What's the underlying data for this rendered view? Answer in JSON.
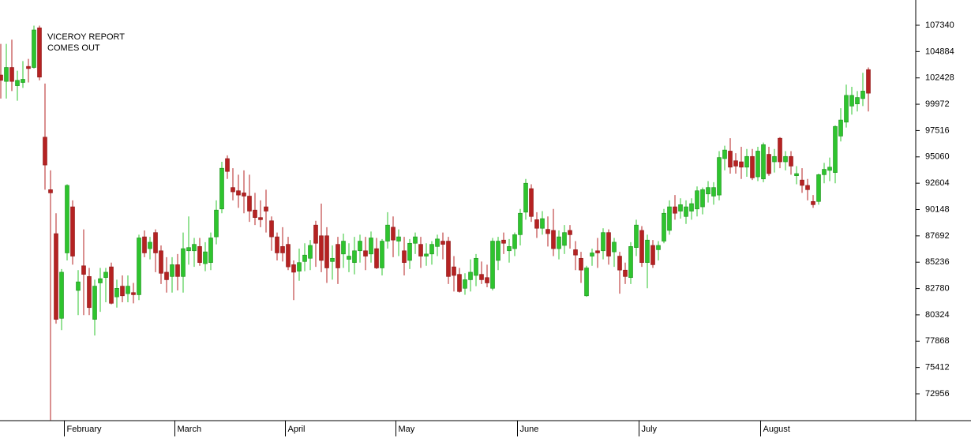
{
  "chart_data": {
    "type": "candlestick",
    "annotation": [
      "VICEROY REPORT",
      "COMES OUT"
    ],
    "annotation_color": "#2020b0",
    "up_color": "#2ec42e",
    "down_color": "#b52222",
    "ylim": [
      70453,
      109696
    ],
    "yticks": [
      72956,
      75412,
      77868,
      80324,
      82780,
      85236,
      87692,
      90148,
      92604,
      95060,
      97516,
      99972,
      102428,
      104884,
      107340
    ],
    "categories": [
      null,
      null,
      null,
      null,
      null,
      null,
      null,
      null,
      null,
      null,
      null,
      null,
      "February",
      null,
      null,
      null,
      null,
      null,
      null,
      null,
      null,
      null,
      null,
      null,
      null,
      null,
      null,
      null,
      null,
      null,
      null,
      null,
      "March",
      null,
      null,
      null,
      null,
      null,
      null,
      null,
      null,
      null,
      null,
      null,
      null,
      null,
      null,
      null,
      null,
      null,
      null,
      null,
      "April",
      null,
      null,
      null,
      null,
      null,
      null,
      null,
      null,
      null,
      null,
      null,
      null,
      null,
      null,
      null,
      null,
      null,
      null,
      null,
      "May",
      null,
      null,
      null,
      null,
      null,
      null,
      null,
      null,
      null,
      null,
      null,
      null,
      null,
      null,
      null,
      null,
      null,
      null,
      null,
      null,
      null,
      "June",
      null,
      null,
      null,
      null,
      null,
      null,
      null,
      null,
      null,
      null,
      null,
      null,
      null,
      null,
      null,
      null,
      null,
      null,
      null,
      null,
      null,
      "July",
      null,
      null,
      null,
      null,
      null,
      null,
      null,
      null,
      null,
      null,
      null,
      null,
      null,
      null,
      null,
      null,
      null,
      null,
      null,
      null,
      null,
      "August",
      null,
      null,
      null,
      null,
      null,
      null,
      null,
      null,
      null,
      null,
      null,
      null,
      null,
      null,
      null,
      null,
      null,
      null,
      null
    ],
    "open": [
      102700,
      102100,
      103400,
      101700,
      102000,
      103500,
      103400,
      107100,
      96900,
      92000,
      87900,
      80000,
      86100,
      90400,
      82600,
      84900,
      83900,
      79900,
      83300,
      83800,
      84800,
      82000,
      83000,
      82300,
      82400,
      82200,
      87600,
      86500,
      88000,
      86300,
      84300,
      83900,
      85000,
      83900,
      86300,
      86300,
      86700,
      85100,
      85200,
      87600,
      90200,
      94900,
      92200,
      91900,
      91700,
      91400,
      90100,
      89400,
      90400,
      89100,
      87600,
      86700,
      86900,
      85000,
      84400,
      85300,
      85600,
      88700,
      87700,
      87700,
      85300,
      86900,
      86000,
      85500,
      85200,
      86300,
      86300,
      86000,
      86500,
      84700,
      87200,
      88500,
      87200,
      86300,
      85400,
      87000,
      86900,
      85800,
      86000,
      86700,
      87200,
      87200,
      84800,
      84100,
      82800,
      83600,
      84000,
      84100,
      83800,
      82800,
      85400,
      87300,
      86300,
      86500,
      87800,
      89900,
      92100,
      89200,
      88400,
      88300,
      88200,
      86500,
      86800,
      88200,
      86400,
      85600,
      82100,
      85800,
      86300,
      86300,
      88000,
      86200,
      85800,
      84500,
      83800,
      86600,
      88200,
      85200,
      86800,
      86400,
      87200,
      88200,
      90400,
      90000,
      89500,
      90000,
      90200,
      90400,
      91600,
      91400,
      91500,
      94900,
      95600,
      94700,
      94600,
      94100,
      95100,
      93200,
      93000,
      95300,
      94600,
      96800,
      94600,
      95100,
      93300,
      92900,
      92400,
      90900,
      90900,
      93400,
      93800,
      93600,
      97000,
      98300,
      99800,
      100000,
      100500,
      103200
    ],
    "high": [
      105600,
      105600,
      106000,
      103100,
      104000,
      104200,
      107300,
      107300,
      101900,
      93800,
      89800,
      84600,
      92500,
      91000,
      84500,
      88300,
      84700,
      83600,
      84700,
      84700,
      85200,
      83600,
      84000,
      84000,
      83300,
      87800,
      88200,
      87600,
      88300,
      86800,
      85700,
      85700,
      86000,
      88000,
      89500,
      87500,
      87500,
      87100,
      88000,
      91000,
      94600,
      95200,
      94000,
      93400,
      93800,
      93400,
      91700,
      91000,
      92000,
      89500,
      88000,
      88500,
      87600,
      85400,
      86500,
      87000,
      87300,
      89100,
      90700,
      88500,
      86800,
      87600,
      87900,
      87000,
      87600,
      87800,
      87600,
      88100,
      87500,
      87400,
      89900,
      89500,
      88300,
      87600,
      87400,
      88000,
      87600,
      87000,
      87200,
      87800,
      88000,
      87600,
      85800,
      84700,
      84200,
      85500,
      86000,
      85300,
      85000,
      87500,
      87600,
      88000,
      87400,
      88000,
      90200,
      93000,
      92500,
      89900,
      90000,
      89500,
      90200,
      88200,
      88700,
      88700,
      87200,
      86200,
      84900,
      86500,
      87500,
      88400,
      88300,
      87500,
      86200,
      85200,
      87100,
      89200,
      88600,
      87800,
      87300,
      87200,
      90200,
      91000,
      91500,
      91200,
      91000,
      91200,
      92300,
      92200,
      92800,
      92700,
      95600,
      96100,
      96800,
      95400,
      96000,
      95800,
      95800,
      96000,
      96400,
      96000,
      95800,
      96900,
      95600,
      95600,
      94200,
      94000,
      93000,
      91500,
      93500,
      94500,
      95000,
      98000,
      99600,
      101800,
      101600,
      101200,
      102900,
      103400
    ],
    "low": [
      100500,
      100500,
      101200,
      100300,
      101500,
      102000,
      103300,
      102200,
      92000,
      70500,
      79500,
      78900,
      85400,
      85000,
      80300,
      80300,
      80300,
      78400,
      80600,
      81500,
      81300,
      81000,
      81500,
      81500,
      81400,
      81700,
      85700,
      85500,
      84300,
      83200,
      82400,
      82400,
      82600,
      82400,
      85000,
      84800,
      84900,
      84400,
      84500,
      86900,
      89800,
      93000,
      91000,
      90300,
      89800,
      89000,
      88700,
      88500,
      88000,
      86300,
      85400,
      85300,
      84500,
      81700,
      83500,
      84400,
      84500,
      84800,
      84300,
      83300,
      83600,
      83200,
      84700,
      84300,
      84100,
      85200,
      84500,
      85200,
      84600,
      84000,
      86500,
      85700,
      85800,
      84000,
      84600,
      86000,
      84700,
      84900,
      85000,
      85800,
      85500,
      83200,
      82500,
      82400,
      82200,
      82500,
      83000,
      83200,
      82900,
      82600,
      84500,
      86000,
      85200,
      85800,
      86800,
      89200,
      89000,
      87500,
      87800,
      86700,
      85800,
      85500,
      86000,
      86500,
      84500,
      83300,
      82000,
      84900,
      84700,
      85500,
      85000,
      84800,
      82300,
      83200,
      83200,
      85800,
      84800,
      82800,
      84700,
      85400,
      87000,
      87800,
      89200,
      89300,
      88800,
      89200,
      89500,
      89700,
      90800,
      90600,
      91000,
      93800,
      93500,
      93500,
      93000,
      93200,
      92900,
      92800,
      92700,
      93300,
      93600,
      94000,
      93800,
      93400,
      92500,
      91700,
      91000,
      90300,
      90600,
      92600,
      92800,
      92600,
      96500,
      97800,
      99000,
      99300,
      99800,
      99300
    ],
    "close": [
      102200,
      103400,
      102100,
      102200,
      102300,
      103300,
      106900,
      102500,
      94300,
      91700,
      79900,
      84300,
      92400,
      85800,
      83400,
      84100,
      81000,
      83000,
      83700,
      84300,
      81400,
      82800,
      82100,
      83000,
      82200,
      87500,
      86100,
      87100,
      86100,
      84200,
      83600,
      85000,
      83900,
      86500,
      86600,
      86900,
      85200,
      86200,
      87500,
      90100,
      94000,
      93700,
      91800,
      91500,
      91400,
      90000,
      89400,
      89200,
      90000,
      87600,
      86100,
      86100,
      84800,
      84300,
      85200,
      85900,
      86800,
      87000,
      85400,
      84700,
      85600,
      84700,
      87200,
      85800,
      86300,
      87200,
      85800,
      87500,
      84700,
      87200,
      88700,
      87300,
      87600,
      85200,
      87000,
      87600,
      85800,
      86000,
      86900,
      87400,
      86900,
      83900,
      84000,
      82500,
      83600,
      84300,
      85600,
      83600,
      83300,
      87200,
      87200,
      87000,
      86700,
      87800,
      89800,
      92600,
      89500,
      88400,
      89300,
      87900,
      86500,
      87600,
      88000,
      87800,
      85900,
      84500,
      84700,
      86100,
      86100,
      88000,
      85800,
      87100,
      84500,
      83900,
      86700,
      88700,
      85200,
      87300,
      85000,
      86800,
      89800,
      90400,
      89800,
      90600,
      90400,
      90700,
      91900,
      92000,
      92200,
      92200,
      95000,
      95700,
      94100,
      94200,
      94100,
      95100,
      93100,
      95600,
      96200,
      93500,
      95100,
      94600,
      95100,
      94200,
      93500,
      92400,
      92000,
      90600,
      93400,
      93900,
      94100,
      97900,
      98500,
      100800,
      100800,
      100600,
      101200,
      101000
    ]
  }
}
